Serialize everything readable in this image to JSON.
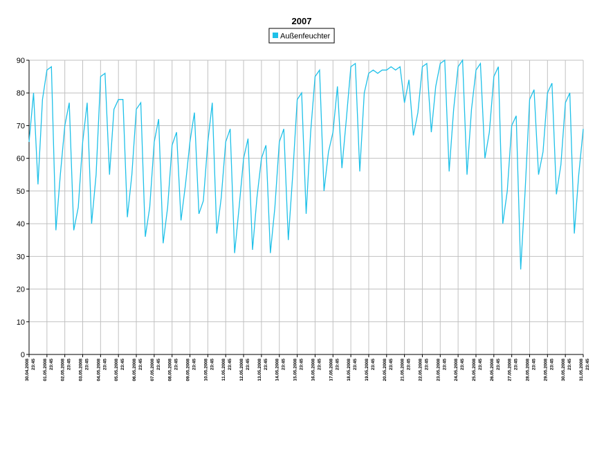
{
  "chart_data": {
    "type": "line",
    "title": "2007",
    "series": [
      {
        "name": "Außenfeuchter",
        "color": "#1ec0e8",
        "x": [
          0,
          0.25,
          0.5,
          0.75,
          1,
          1.25,
          1.5,
          1.75,
          2,
          2.25,
          2.5,
          2.75,
          3,
          3.25,
          3.5,
          3.75,
          4,
          4.25,
          4.5,
          4.75,
          5,
          5.25,
          5.5,
          5.75,
          6,
          6.25,
          6.5,
          6.75,
          7,
          7.25,
          7.5,
          7.75,
          8,
          8.25,
          8.5,
          8.75,
          9,
          9.25,
          9.5,
          9.75,
          10,
          10.25,
          10.5,
          10.75,
          11,
          11.25,
          11.5,
          11.75,
          12,
          12.25,
          12.5,
          12.75,
          13,
          13.25,
          13.5,
          13.75,
          14,
          14.25,
          14.5,
          14.75,
          15,
          15.25,
          15.5,
          15.75,
          16,
          16.25,
          16.5,
          16.75,
          17,
          17.25,
          17.5,
          17.75,
          18,
          18.25,
          18.5,
          18.75,
          19,
          19.25,
          19.5,
          19.75,
          20,
          20.25,
          20.5,
          20.75,
          21,
          21.25,
          21.5,
          21.75,
          22,
          22.25,
          22.5,
          22.75,
          23,
          23.25,
          23.5,
          23.75,
          24,
          24.25,
          24.5,
          24.75,
          25,
          25.25,
          25.5,
          25.75,
          26,
          26.25,
          26.5,
          26.75,
          27,
          27.25,
          27.5,
          27.75,
          28,
          28.25,
          28.5,
          28.75,
          29,
          29.25,
          29.5,
          29.75,
          30,
          30.25,
          30.5,
          30.75,
          31
        ],
        "values": [
          65,
          80,
          52,
          78,
          87,
          88,
          38,
          55,
          70,
          77,
          38,
          45,
          65,
          77,
          40,
          55,
          85,
          86,
          55,
          75,
          78,
          78,
          42,
          55,
          75,
          77,
          36,
          45,
          65,
          72,
          34,
          45,
          64,
          68,
          41,
          52,
          65,
          74,
          43,
          47,
          65,
          77,
          37,
          48,
          65,
          69,
          31,
          45,
          60,
          66,
          32,
          48,
          60,
          64,
          31,
          45,
          65,
          69,
          35,
          55,
          78,
          80,
          43,
          68,
          85,
          87,
          50,
          62,
          68,
          82,
          57,
          72,
          88,
          89,
          56,
          80,
          86,
          87,
          86,
          87,
          87,
          88,
          87,
          88,
          77,
          84,
          67,
          74,
          88,
          89,
          68,
          82,
          89,
          90,
          56,
          75,
          88,
          90,
          55,
          75,
          87,
          89,
          60,
          68,
          85,
          88,
          40,
          50,
          70,
          73,
          26,
          50,
          78,
          81,
          55,
          62,
          80,
          83,
          49,
          58,
          77,
          80,
          37,
          55,
          69
        ]
      }
    ],
    "xlim": [
      0,
      31
    ],
    "xticks": [
      {
        "value": 0,
        "label": "30.04.2008 23:45"
      },
      {
        "value": 1,
        "label": "01.05.2008 23:45"
      },
      {
        "value": 2,
        "label": "02.05.2008 23:45"
      },
      {
        "value": 3,
        "label": "03.05.2008 23:45"
      },
      {
        "value": 4,
        "label": "04.05.2008 23:45"
      },
      {
        "value": 5,
        "label": "05.05.2008 23:45"
      },
      {
        "value": 6,
        "label": "06.05.2008 23:45"
      },
      {
        "value": 7,
        "label": "07.05.2008 23:45"
      },
      {
        "value": 8,
        "label": "08.05.2008 23:45"
      },
      {
        "value": 9,
        "label": "09.05.2008 23:45"
      },
      {
        "value": 10,
        "label": "10.05.2008 23:45"
      },
      {
        "value": 11,
        "label": "11.05.2008 23:45"
      },
      {
        "value": 12,
        "label": "12.05.2008 23:45"
      },
      {
        "value": 13,
        "label": "13.05.2008 23:45"
      },
      {
        "value": 14,
        "label": "14.05.2008 23:45"
      },
      {
        "value": 15,
        "label": "15.05.2008 23:45"
      },
      {
        "value": 16,
        "label": "16.05.2008 23:45"
      },
      {
        "value": 17,
        "label": "17.05.2008 23:45"
      },
      {
        "value": 18,
        "label": "18.05.2008 23:45"
      },
      {
        "value": 19,
        "label": "19.05.2008 23:45"
      },
      {
        "value": 20,
        "label": "20.05.2008 23:45"
      },
      {
        "value": 21,
        "label": "21.05.2008 23:45"
      },
      {
        "value": 22,
        "label": "22.05.2008 23:45"
      },
      {
        "value": 23,
        "label": "23.05.2008 23:45"
      },
      {
        "value": 24,
        "label": "24.05.2008 23:45"
      },
      {
        "value": 25,
        "label": "25.05.2008 23:45"
      },
      {
        "value": 26,
        "label": "26.05.2008 23:45"
      },
      {
        "value": 27,
        "label": "27.05.2008 23:45"
      },
      {
        "value": 28,
        "label": "28.05.2008 23:45"
      },
      {
        "value": 29,
        "label": "29.05.2008 23:45"
      },
      {
        "value": 30,
        "label": "30.05.2008 23:45"
      },
      {
        "value": 31,
        "label": "31.05.2008 23:45"
      }
    ],
    "ylim": [
      0,
      90
    ],
    "yticks": [
      0,
      10,
      20,
      30,
      40,
      50,
      60,
      70,
      80,
      90
    ],
    "grid": true,
    "legend": "top"
  }
}
